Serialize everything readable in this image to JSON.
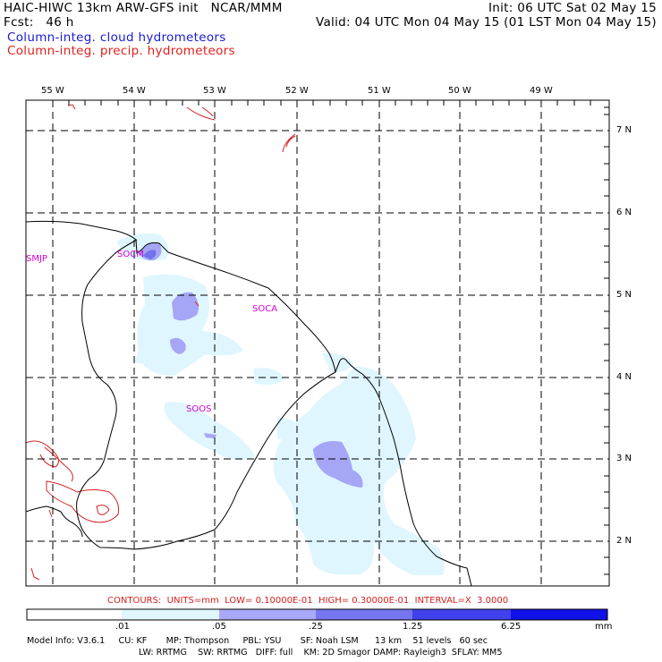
{
  "header": {
    "line1_left": "HAIC-HIWC 13km ARW-GFS init   NCAR/MMM",
    "line1_right": "Init: 06 UTC Sat 02 May 15",
    "line2_left": "Fcst:   46 h",
    "line2_right": "Valid: 04 UTC Mon 04 May 15 (01 LST Mon 04 May 15)",
    "field_cloud": "Column-integ. cloud hydrometeors",
    "field_precip": "Column-integ. precip. hydrometeors"
  },
  "colors": {
    "cloud_label": "#1a1ad6",
    "precip_label": "#e0201c",
    "station_label": "#d400d4",
    "contour_line": "#d42020",
    "fill_1": "#dff6ff",
    "fill_2": "#a8a8f8",
    "fill_3": "#7676f0",
    "fill_4": "#4040ec",
    "fill_5": "#1010e8"
  },
  "map": {
    "lon_labels": [
      "55 W",
      "54 W",
      "53 W",
      "52 W",
      "51 W",
      "50 W",
      "49 W"
    ],
    "lat_labels": [
      "7 N",
      "6 N",
      "5 N",
      "4 N",
      "3 N",
      "2 N"
    ],
    "stations": [
      "SMJP",
      "SOCM",
      "SOCA",
      "SOOS"
    ]
  },
  "contours_note": "CONTOURS:  UNITS=mm  LOW= 0.10000E-01  HIGH= 0.30000E-01  INTERVAL=X  3.0000",
  "colorbar": {
    "ticks": [
      ".01",
      ".05",
      ".25",
      "1.25",
      "6.25"
    ],
    "units": "mm"
  },
  "model_info": {
    "line1": "Model Info: V3.6.1     CU: KF       MP: Thompson     PBL: YSU       SF: Noah LSM      13 km    51 levels   60 sec",
    "line2": "LW: RRTMG    SW: RRTMG   DIFF: full    KM: 2D Smagor DAMP: Rayleigh3  SFLAY: MM5"
  }
}
